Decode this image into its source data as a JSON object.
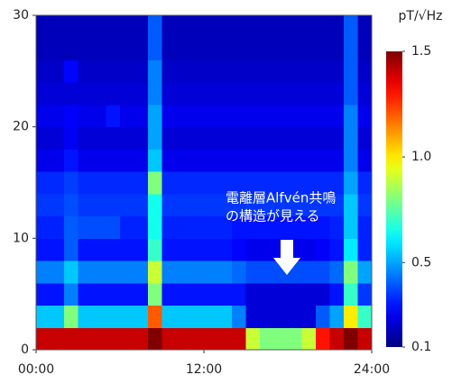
{
  "chart_data": {
    "type": "heatmap",
    "xlim": [
      0,
      24
    ],
    "xticks": [
      {
        "value": 0,
        "label": "00:00"
      },
      {
        "value": 12,
        "label": "12:00"
      },
      {
        "value": 24,
        "label": "24:00"
      }
    ],
    "ylim": [
      0,
      30
    ],
    "yticks": [
      0,
      10,
      20,
      30
    ],
    "x_bins": [
      0,
      1,
      2,
      3,
      4,
      5,
      6,
      7,
      8,
      9,
      10,
      11,
      12,
      13,
      14,
      15,
      16,
      17,
      18,
      19,
      20,
      21,
      22,
      23,
      24
    ],
    "y_bins": [
      0,
      2,
      4,
      6,
      8,
      10,
      12,
      14,
      16,
      18,
      20,
      22,
      24,
      26,
      28,
      30
    ],
    "colormap": "jet",
    "colorbar": {
      "label": "pT/√Hz",
      "lim": [
        0.1,
        1.5
      ],
      "ticks": [
        0.1,
        0.5,
        {
          "value": 1.0,
          "label": "1.0"
        },
        1.5
      ]
    },
    "annotation": [
      "電離層Alfvén共鳴",
      "の構造が見える"
    ],
    "z": [
      [
        1.4,
        1.4,
        1.4,
        1.4,
        1.4,
        1.4,
        1.4,
        1.4,
        1.5,
        1.4,
        1.4,
        1.4,
        1.4,
        1.4,
        1.4,
        0.9,
        0.8,
        0.8,
        0.8,
        0.9,
        1.3,
        1.4,
        1.5,
        1.4
      ],
      [
        0.55,
        0.55,
        0.8,
        0.55,
        0.55,
        0.55,
        0.55,
        0.55,
        1.2,
        0.55,
        0.55,
        0.55,
        0.55,
        0.55,
        0.45,
        0.22,
        0.22,
        0.22,
        0.22,
        0.22,
        0.4,
        0.5,
        1.0,
        0.7
      ],
      [
        0.3,
        0.3,
        0.45,
        0.3,
        0.3,
        0.3,
        0.3,
        0.3,
        0.8,
        0.3,
        0.3,
        0.3,
        0.3,
        0.3,
        0.3,
        0.22,
        0.22,
        0.22,
        0.22,
        0.22,
        0.22,
        0.3,
        0.7,
        0.35
      ],
      [
        0.45,
        0.45,
        0.55,
        0.45,
        0.45,
        0.45,
        0.45,
        0.45,
        0.9,
        0.45,
        0.45,
        0.45,
        0.45,
        0.45,
        0.42,
        0.38,
        0.38,
        0.38,
        0.38,
        0.38,
        0.38,
        0.42,
        0.8,
        0.5
      ],
      [
        0.3,
        0.3,
        0.4,
        0.3,
        0.3,
        0.3,
        0.3,
        0.3,
        0.7,
        0.3,
        0.3,
        0.3,
        0.3,
        0.3,
        0.28,
        0.25,
        0.25,
        0.25,
        0.25,
        0.25,
        0.27,
        0.3,
        0.6,
        0.32
      ],
      [
        0.32,
        0.32,
        0.4,
        0.38,
        0.38,
        0.38,
        0.32,
        0.32,
        0.65,
        0.32,
        0.32,
        0.32,
        0.32,
        0.32,
        0.3,
        0.3,
        0.3,
        0.3,
        0.3,
        0.3,
        0.3,
        0.32,
        0.55,
        0.32
      ],
      [
        0.35,
        0.35,
        0.38,
        0.35,
        0.35,
        0.35,
        0.35,
        0.35,
        0.65,
        0.35,
        0.35,
        0.35,
        0.35,
        0.35,
        0.35,
        0.35,
        0.35,
        0.35,
        0.35,
        0.35,
        0.35,
        0.35,
        0.55,
        0.35
      ],
      [
        0.33,
        0.33,
        0.36,
        0.33,
        0.33,
        0.33,
        0.33,
        0.33,
        0.8,
        0.33,
        0.33,
        0.33,
        0.33,
        0.33,
        0.33,
        0.33,
        0.33,
        0.33,
        0.33,
        0.33,
        0.33,
        0.33,
        0.5,
        0.33
      ],
      [
        0.25,
        0.25,
        0.3,
        0.25,
        0.25,
        0.25,
        0.25,
        0.25,
        0.55,
        0.25,
        0.25,
        0.25,
        0.25,
        0.25,
        0.25,
        0.25,
        0.25,
        0.25,
        0.25,
        0.25,
        0.25,
        0.25,
        0.45,
        0.25
      ],
      [
        0.22,
        0.22,
        0.26,
        0.22,
        0.22,
        0.22,
        0.22,
        0.22,
        0.5,
        0.22,
        0.22,
        0.22,
        0.22,
        0.22,
        0.22,
        0.22,
        0.22,
        0.22,
        0.22,
        0.22,
        0.22,
        0.22,
        0.45,
        0.22
      ],
      [
        0.25,
        0.25,
        0.27,
        0.25,
        0.25,
        0.3,
        0.25,
        0.25,
        0.5,
        0.25,
        0.25,
        0.25,
        0.25,
        0.25,
        0.25,
        0.25,
        0.25,
        0.25,
        0.25,
        0.25,
        0.25,
        0.25,
        0.45,
        0.25
      ],
      [
        0.22,
        0.22,
        0.22,
        0.22,
        0.22,
        0.22,
        0.22,
        0.22,
        0.45,
        0.22,
        0.22,
        0.22,
        0.22,
        0.22,
        0.22,
        0.22,
        0.22,
        0.22,
        0.22,
        0.22,
        0.22,
        0.22,
        0.4,
        0.22
      ],
      [
        0.2,
        0.2,
        0.28,
        0.2,
        0.2,
        0.2,
        0.2,
        0.2,
        0.45,
        0.2,
        0.2,
        0.2,
        0.2,
        0.2,
        0.2,
        0.2,
        0.2,
        0.2,
        0.2,
        0.2,
        0.2,
        0.2,
        0.4,
        0.2
      ],
      [
        0.18,
        0.18,
        0.18,
        0.18,
        0.18,
        0.18,
        0.18,
        0.18,
        0.4,
        0.18,
        0.18,
        0.18,
        0.18,
        0.18,
        0.18,
        0.18,
        0.18,
        0.18,
        0.18,
        0.18,
        0.18,
        0.18,
        0.4,
        0.18
      ],
      [
        0.18,
        0.18,
        0.18,
        0.18,
        0.18,
        0.18,
        0.18,
        0.18,
        0.4,
        0.18,
        0.18,
        0.18,
        0.18,
        0.18,
        0.18,
        0.18,
        0.18,
        0.18,
        0.18,
        0.18,
        0.18,
        0.18,
        0.4,
        0.18
      ]
    ]
  }
}
